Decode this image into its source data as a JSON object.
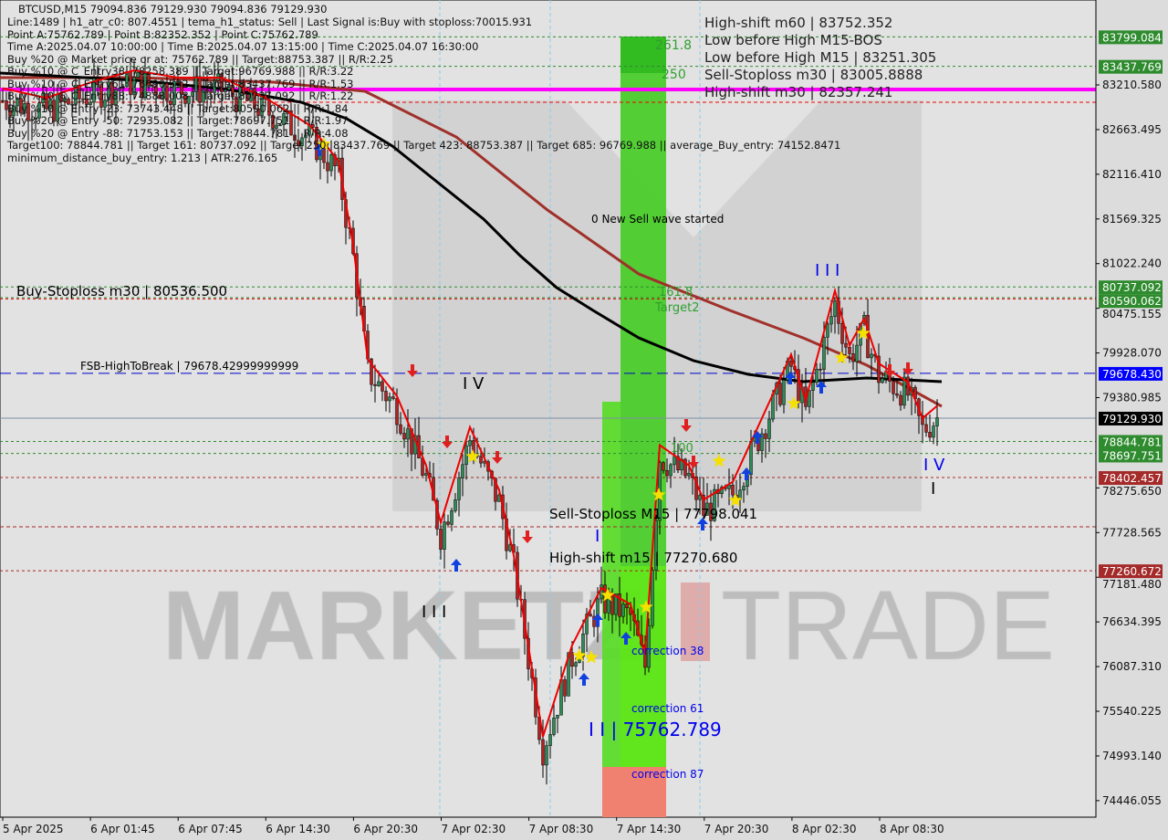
{
  "header": {
    "symbol_line": "BTCUSD,M15  79094.836 79129.930 79094.836 79129.930",
    "info_lines": [
      "Line:1489 | h1_atr_c0: 807.4551 | tema_h1_status: Sell | Last Signal is:Buy with stoploss:70015.931",
      "Point A:75762.789 | Point B:82352.352 | Point C:75762.789",
      "Time A:2025.04.07 10:00:00 | Time B:2025.04.07 13:15:00 | Time C:2025.04.07 16:30:00",
      "Buy %20 @ Market price or at: 75762.789 || Target:88753.387 || R/R:2.25",
      "Buy %10 @ C_Entry38: 78258.389 || Target:96769.988 || R/R:3.22",
      "Buy %10 @ C_Entry61: 76690.532 || Target:83437.769 || R/R:1.53",
      "Buy %10 @ C_Entry88: 74888.008 || Target:80737.092 || R/R:1.22",
      "Buy %10 @ Entry -23: 73743.448 || Target:80590.062 || R/R:1.84",
      "Buy %20 @ Entry -50: 72935.082 || Target:78697.751 || R/R:1.97",
      "Buy %20 @ Entry -88: 71753.153 || Target:78844.781 || R/R:4.08",
      "Target100: 78844.781 || Target 161: 80737.092 || Target 250: 83437.769 || Target 423: 88753.387 || Target 685: 96769.988 || average_Buy_entry: 74152.8471",
      "minimum_distance_buy_entry: 1.213 | ATR:276.165"
    ],
    "overlay_labels": [
      "High-shift m60 | 83752.352",
      "Low before High   M15-BOS",
      "Low before High   M15 | 83251.305",
      "Sell-Stoploss m30 | 83005.8888",
      "High-shift m30 | 82357.241"
    ]
  },
  "levels": {
    "buy_stoploss_m30": "Buy-Stoploss m30 | 80536.500",
    "fsb_high_to_break": "FSB-HighToBreak | 79678.42999999999",
    "sell_stoploss_m15": "Sell-Stoploss M15 | 77798.041",
    "high_shift_m15": "High-shift m15 | 77270.680",
    "new_sell_wave": "0 New Sell wave started"
  },
  "fib_labels": {
    "f2618": "261.8",
    "f250": "250",
    "f1618": "161.8",
    "target2": "Target2",
    "f100": "100",
    "c38": "correction 38",
    "c61": "correction 61",
    "c87": "correction 87"
  },
  "wave_labels": {
    "w3_top": "I I I",
    "w4_left": "I V",
    "w3_left": "I I I",
    "w1": "I",
    "w2": "I I | 75762.789",
    "w4_right": "I V",
    "w5": "I"
  },
  "watermark": "MARKETZITRADE",
  "chart_data": {
    "type": "candlestick",
    "symbol": "BTCUSD",
    "timeframe": "M15",
    "ylim": [
      74100,
      84050
    ],
    "y_ticks": [
      83210.58,
      82663.495,
      82116.41,
      81569.325,
      81022.24,
      80475.155,
      79928.07,
      79380.985,
      78833.9,
      78275.65,
      77728.565,
      77181.48,
      76634.395,
      76087.31,
      75540.225,
      74993.14,
      74446.055
    ],
    "y_tick_labels": [
      "83210.580",
      "82663.495",
      "82116.410",
      "81569.325",
      "81022.240",
      "80475.155",
      "79928.070",
      "79380.985",
      "",
      "78275.650",
      "77728.565",
      "77181.480",
      "76634.395",
      "76087.310",
      "75540.225",
      "74993.140",
      "74446.055"
    ],
    "x_tick_labels": [
      "5 Apr 2025",
      "6 Apr 01:45",
      "6 Apr 07:45",
      "6 Apr 14:30",
      "6 Apr 20:30",
      "7 Apr 02:30",
      "7 Apr 08:30",
      "7 Apr 14:30",
      "7 Apr 20:30",
      "8 Apr 02:30",
      "8 Apr 08:30"
    ],
    "price_path": [
      [
        "5 Apr 19:45",
        83020
      ],
      [
        "5 Apr 22:45",
        82900
      ],
      [
        "6 Apr 01:45",
        83090
      ],
      [
        "6 Apr 04:45",
        83240
      ],
      [
        "6 Apr 07:45",
        83150
      ],
      [
        "6 Apr 10:45",
        83150
      ],
      [
        "6 Apr 13:45",
        82900
      ],
      [
        "6 Apr 16:45",
        82570
      ],
      [
        "6 Apr 18:45",
        82130
      ],
      [
        "6 Apr 19:45",
        81100
      ],
      [
        "6 Apr 20:45",
        79700
      ],
      [
        "6 Apr 22:45",
        79250
      ],
      [
        "7 Apr 00:45",
        78400
      ],
      [
        "7 Apr 01:45",
        77700
      ],
      [
        "7 Apr 03:45",
        78870
      ],
      [
        "7 Apr 05:45",
        78100
      ],
      [
        "7 Apr 06:45",
        77300
      ],
      [
        "7 Apr 08:45",
        75080
      ],
      [
        "7 Apr 10:45",
        76200
      ],
      [
        "7 Apr 12:45",
        76900
      ],
      [
        "7 Apr 14:45",
        76700
      ],
      [
        "7 Apr 15:45",
        76090
      ],
      [
        "7 Apr 16:45",
        78650
      ],
      [
        "7 Apr 18:45",
        78400
      ],
      [
        "7 Apr 19:45",
        77980
      ],
      [
        "7 Apr 21:45",
        78200
      ],
      [
        "7 Apr 23:45",
        78980
      ],
      [
        "8 Apr 01:45",
        79760
      ],
      [
        "8 Apr 02:45",
        79200
      ],
      [
        "8 Apr 04:45",
        80540
      ],
      [
        "8 Apr 05:45",
        79870
      ],
      [
        "8 Apr 06:45",
        80200
      ],
      [
        "8 Apr 07:45",
        79650
      ],
      [
        "8 Apr 09:45",
        79420
      ],
      [
        "8 Apr 10:45",
        78980
      ],
      [
        "8 Apr 11:45",
        79129.93
      ]
    ],
    "price_labels": [
      {
        "value": 83799.084,
        "text": "83799.084",
        "bg": "#2e8b2e",
        "line": "#2e8b2e"
      },
      {
        "value": 83437.769,
        "text": "83437.769",
        "bg": "#2e8b2e",
        "line": "#2e8b2e"
      },
      {
        "value": 80737.092,
        "text": "80737.092",
        "bg": "#2e8b2e",
        "line": "#2e8b2e"
      },
      {
        "value": 80590.062,
        "text": "80590.062",
        "bg": "#2e8b2e",
        "line": "#e00000"
      },
      {
        "value": 79678.43,
        "text": "79678.430",
        "bg": "#0000ff",
        "line": "#0000cc"
      },
      {
        "value": 79129.93,
        "text": "79129.930",
        "bg": "#000000",
        "line": "#7f8fa0"
      },
      {
        "value": 78844.781,
        "text": "78844.781",
        "bg": "#2e8b2e",
        "line": "#2e8b2e"
      },
      {
        "value": 78697.751,
        "text": "78697.751",
        "bg": "#2e8b2e",
        "line": "#2e8b2e"
      },
      {
        "value": 78402.457,
        "text": "78402.457",
        "bg": "#a52a2a",
        "line": "#a52a2a"
      },
      {
        "value": 77260.672,
        "text": "77260.672",
        "bg": "#a52a2a",
        "line": "#a52a2a"
      }
    ],
    "colors": {
      "bull": "#2e8b57",
      "bear": "#b22222",
      "magenta": "#ff00ff",
      "fib_green": "#44cc22",
      "fib_red": "#f08070"
    }
  }
}
